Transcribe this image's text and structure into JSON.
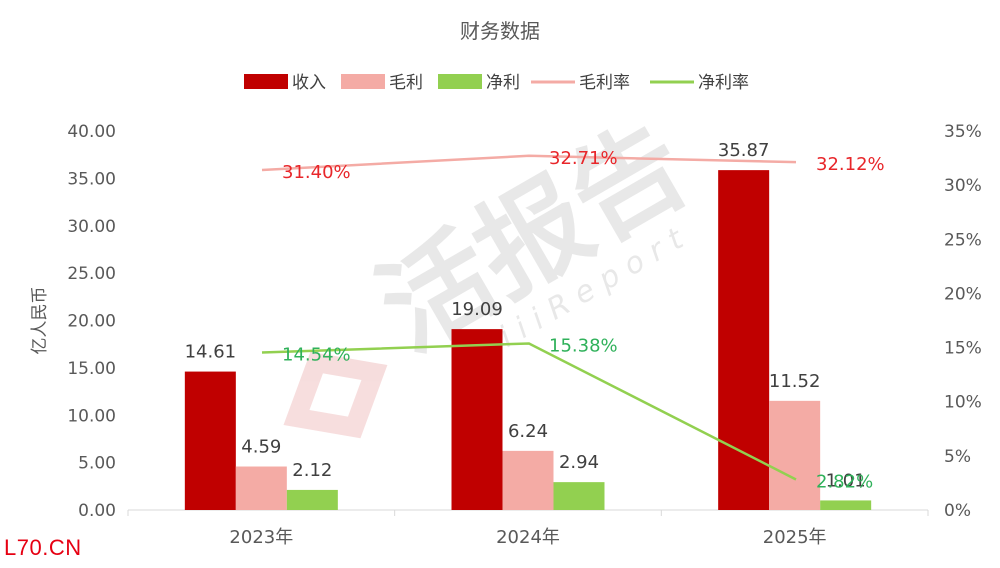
{
  "chart_data": {
    "type": "bar",
    "title": "财务数据",
    "categories": [
      "2023年",
      "2024年",
      "2025年"
    ],
    "series": [
      {
        "name": "收入",
        "kind": "bar",
        "axis": "left",
        "values": [
          14.61,
          19.09,
          35.87
        ],
        "labels": [
          "14.61",
          "19.09",
          "35.87"
        ],
        "color": "#c00000",
        "label_color": "#404040"
      },
      {
        "name": "毛利",
        "kind": "bar",
        "axis": "left",
        "values": [
          4.59,
          6.24,
          11.52
        ],
        "labels": [
          "4.59",
          "6.24",
          "11.52"
        ],
        "color": "#f4aba5",
        "label_color": "#404040"
      },
      {
        "name": "净利",
        "kind": "bar",
        "axis": "left",
        "values": [
          2.12,
          2.94,
          1.01
        ],
        "labels": [
          "2.12",
          "2.94",
          "1.01"
        ],
        "color": "#92d050",
        "label_color": "#404040"
      },
      {
        "name": "毛利率",
        "kind": "line",
        "axis": "right",
        "values": [
          31.4,
          32.71,
          32.12
        ],
        "labels": [
          "31.40%",
          "32.71%",
          "32.12%"
        ],
        "color": "#f4aba5",
        "label_color": "#e8262a"
      },
      {
        "name": "净利率",
        "kind": "line",
        "axis": "right",
        "values": [
          14.54,
          15.38,
          2.82
        ],
        "labels": [
          "14.54%",
          "15.38%",
          "2.82%"
        ],
        "color": "#92d050",
        "label_color": "#2fb15a"
      }
    ],
    "ylabel": "亿人民币",
    "ylim": [
      0,
      40
    ],
    "yticks": [
      "0.00",
      "5.00",
      "10.00",
      "15.00",
      "20.00",
      "25.00",
      "30.00",
      "35.00",
      "40.00"
    ],
    "y2lim": [
      0,
      35
    ],
    "y2ticks": [
      "0%",
      "5%",
      "10%",
      "15%",
      "20%",
      "25%",
      "30%",
      "35%"
    ],
    "grid": false,
    "legend_position": "top"
  },
  "watermark": {
    "brand": "活报告",
    "sub": "iiiReport"
  },
  "source_tag": "L70.CN"
}
